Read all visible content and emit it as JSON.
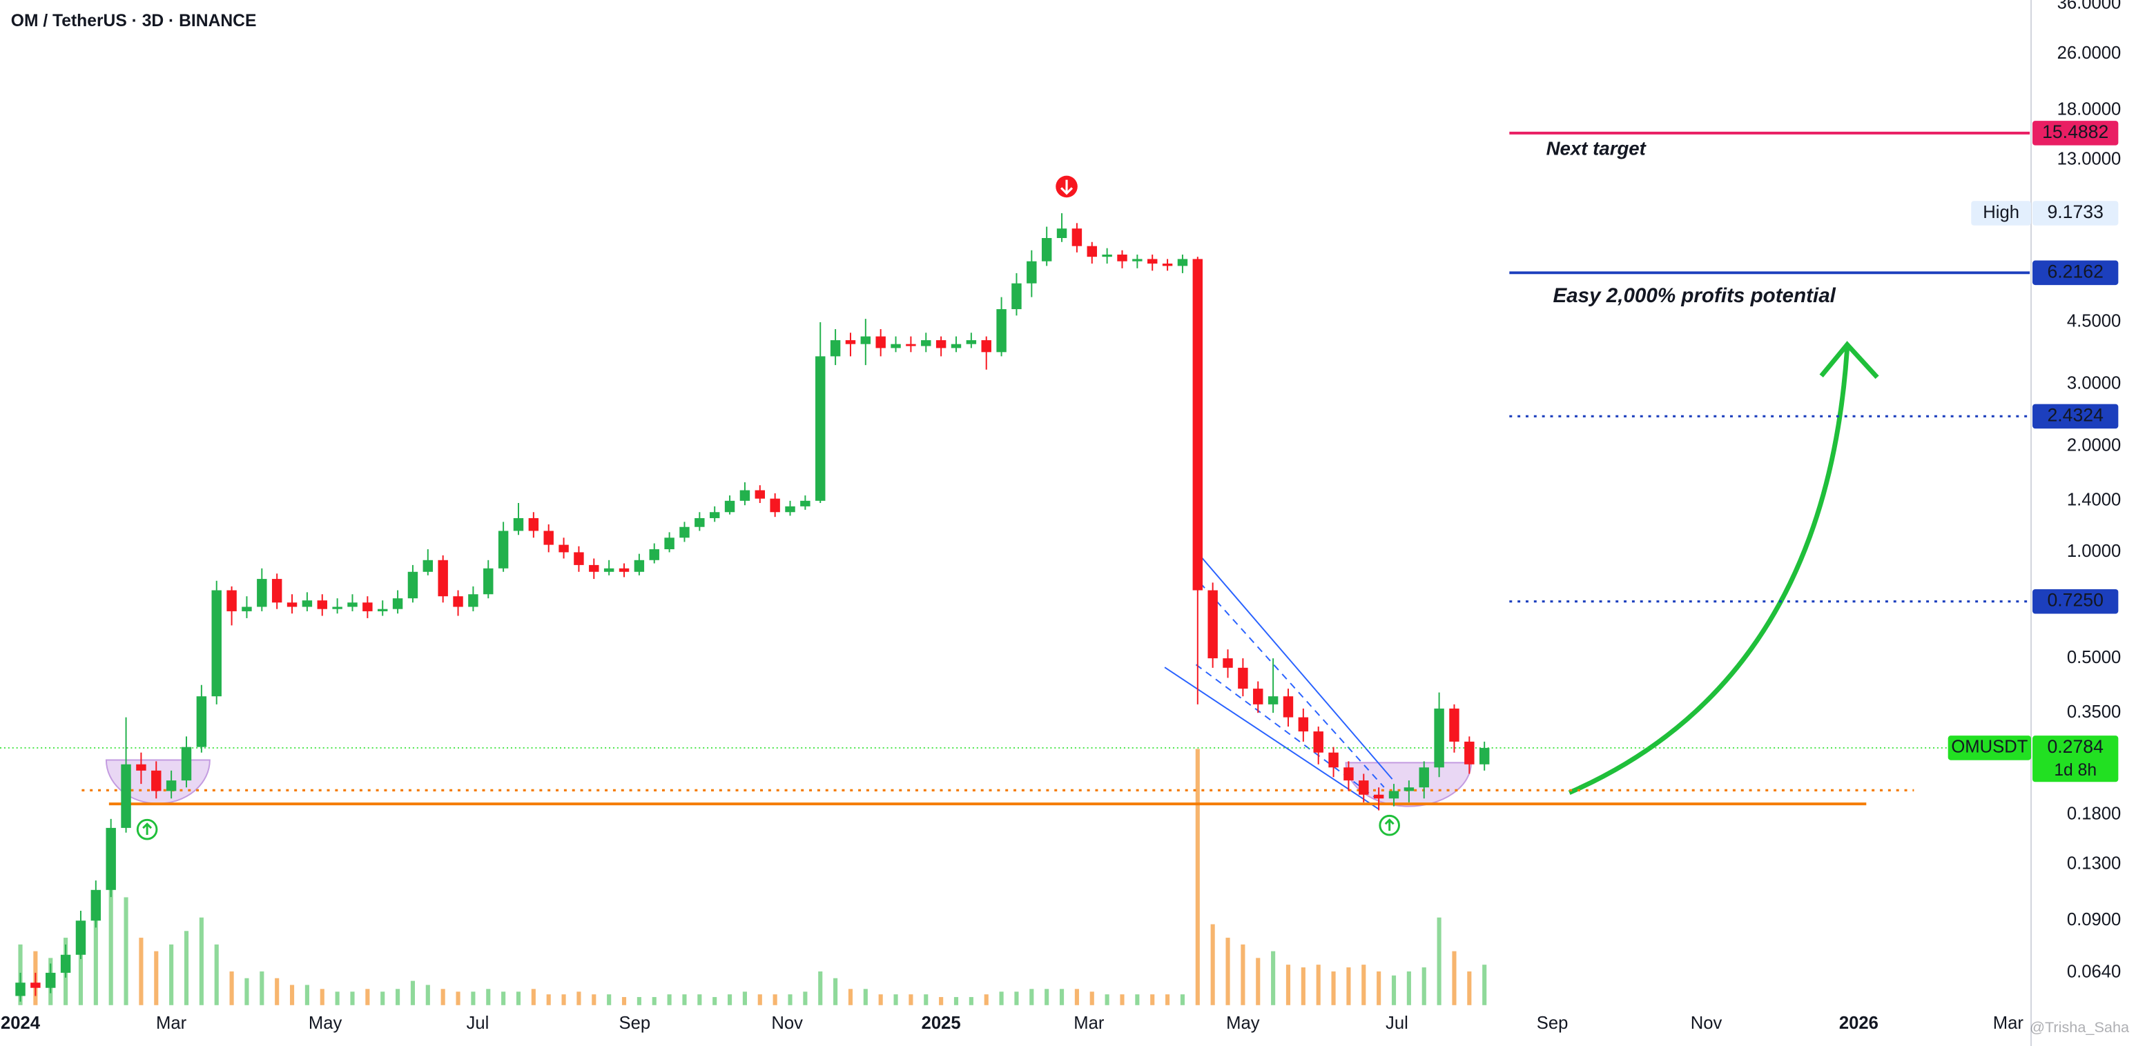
{
  "chart_data": {
    "type": "candlestick",
    "title": "OM / TetherUS · 3D · BINANCE",
    "log_scale": true,
    "up_color": "#22b14c",
    "down_color": "#f7161f",
    "volume_up_color": "#8fd99a",
    "volume_down_color": "#f7b56e",
    "open": [
      0.055,
      0.06,
      0.058,
      0.064,
      0.072,
      0.09,
      0.11,
      0.165,
      0.25,
      0.24,
      0.21,
      0.225,
      0.28,
      0.39,
      0.78,
      0.68,
      0.7,
      0.84,
      0.72,
      0.7,
      0.73,
      0.69,
      0.7,
      0.72,
      0.68,
      0.69,
      0.74,
      0.88,
      0.95,
      0.75,
      0.7,
      0.76,
      0.9,
      1.15,
      1.25,
      1.15,
      1.05,
      1.0,
      0.92,
      0.88,
      0.9,
      0.88,
      0.95,
      1.02,
      1.1,
      1.18,
      1.25,
      1.3,
      1.4,
      1.5,
      1.42,
      1.3,
      1.35,
      1.4,
      3.6,
      4.0,
      3.9,
      4.1,
      3.8,
      3.9,
      3.85,
      4.0,
      3.8,
      3.9,
      4.0,
      3.7,
      4.9,
      5.8,
      6.7,
      7.8,
      8.3,
      7.4,
      6.9,
      7.0,
      6.7,
      6.8,
      6.6,
      6.5,
      6.8,
      0.78,
      0.5,
      0.47,
      0.41,
      0.37,
      0.39,
      0.34,
      0.31,
      0.27,
      0.245,
      0.225,
      0.205,
      0.2,
      0.21,
      0.215,
      0.245,
      0.36,
      0.29,
      0.25
    ],
    "high": [
      0.064,
      0.064,
      0.068,
      0.077,
      0.096,
      0.117,
      0.175,
      0.34,
      0.27,
      0.255,
      0.24,
      0.3,
      0.42,
      0.83,
      0.8,
      0.75,
      0.9,
      0.87,
      0.76,
      0.77,
      0.76,
      0.74,
      0.76,
      0.75,
      0.73,
      0.78,
      0.92,
      1.02,
      0.98,
      0.78,
      0.8,
      0.95,
      1.22,
      1.38,
      1.3,
      1.2,
      1.1,
      1.04,
      0.96,
      0.95,
      0.93,
      0.99,
      1.06,
      1.14,
      1.22,
      1.3,
      1.35,
      1.45,
      1.58,
      1.55,
      1.47,
      1.4,
      1.45,
      4.5,
      4.3,
      4.2,
      4.6,
      4.3,
      4.1,
      4.1,
      4.2,
      4.1,
      4.1,
      4.2,
      4.1,
      5.3,
      6.2,
      7.2,
      8.4,
      9.1733,
      8.6,
      7.6,
      7.3,
      7.2,
      7.0,
      7.0,
      6.8,
      7.0,
      6.9,
      0.82,
      0.53,
      0.5,
      0.43,
      0.5,
      0.41,
      0.36,
      0.32,
      0.28,
      0.255,
      0.235,
      0.215,
      0.22,
      0.225,
      0.255,
      0.4,
      0.37,
      0.3,
      0.29
    ],
    "low": [
      0.053,
      0.055,
      0.056,
      0.062,
      0.07,
      0.086,
      0.105,
      0.16,
      0.22,
      0.2,
      0.2,
      0.215,
      0.27,
      0.37,
      0.62,
      0.65,
      0.68,
      0.69,
      0.67,
      0.68,
      0.66,
      0.67,
      0.68,
      0.65,
      0.66,
      0.67,
      0.72,
      0.86,
      0.72,
      0.66,
      0.68,
      0.74,
      0.88,
      1.12,
      1.1,
      1.0,
      0.96,
      0.88,
      0.84,
      0.86,
      0.85,
      0.86,
      0.93,
      1.0,
      1.07,
      1.15,
      1.22,
      1.28,
      1.36,
      1.38,
      1.26,
      1.27,
      1.32,
      1.38,
      3.4,
      3.6,
      3.4,
      3.6,
      3.7,
      3.7,
      3.7,
      3.6,
      3.7,
      3.8,
      3.3,
      3.6,
      4.7,
      5.3,
      6.5,
      7.6,
      7.1,
      6.6,
      6.6,
      6.4,
      6.4,
      6.3,
      6.3,
      6.2,
      0.37,
      0.47,
      0.44,
      0.39,
      0.35,
      0.35,
      0.32,
      0.29,
      0.25,
      0.23,
      0.21,
      0.195,
      0.185,
      0.19,
      0.195,
      0.2,
      0.23,
      0.27,
      0.235,
      0.24
    ],
    "close": [
      0.06,
      0.058,
      0.064,
      0.072,
      0.09,
      0.11,
      0.165,
      0.25,
      0.24,
      0.21,
      0.225,
      0.28,
      0.39,
      0.78,
      0.68,
      0.7,
      0.84,
      0.72,
      0.7,
      0.73,
      0.69,
      0.7,
      0.72,
      0.68,
      0.69,
      0.74,
      0.88,
      0.95,
      0.75,
      0.7,
      0.76,
      0.9,
      1.15,
      1.25,
      1.15,
      1.05,
      1.0,
      0.92,
      0.88,
      0.9,
      0.88,
      0.95,
      1.02,
      1.1,
      1.18,
      1.25,
      1.3,
      1.4,
      1.5,
      1.42,
      1.3,
      1.35,
      1.4,
      3.6,
      4.0,
      3.9,
      4.1,
      3.8,
      3.9,
      3.85,
      4.0,
      3.8,
      3.9,
      4.0,
      3.7,
      4.9,
      5.8,
      6.7,
      7.8,
      8.3,
      7.4,
      6.9,
      7.0,
      6.7,
      6.8,
      6.6,
      6.5,
      6.8,
      0.78,
      0.5,
      0.47,
      0.41,
      0.37,
      0.39,
      0.34,
      0.31,
      0.27,
      0.245,
      0.225,
      0.205,
      0.2,
      0.21,
      0.215,
      0.245,
      0.36,
      0.29,
      0.25,
      0.2784
    ],
    "volume": [
      45,
      40,
      35,
      50,
      60,
      70,
      100,
      80,
      50,
      40,
      45,
      55,
      65,
      45,
      25,
      20,
      25,
      20,
      15,
      15,
      12,
      10,
      10,
      12,
      10,
      12,
      18,
      15,
      12,
      10,
      10,
      12,
      10,
      10,
      12,
      8,
      8,
      10,
      8,
      8,
      6,
      6,
      6,
      8,
      8,
      8,
      6,
      8,
      10,
      8,
      8,
      8,
      10,
      25,
      20,
      12,
      12,
      8,
      8,
      8,
      8,
      6,
      6,
      6,
      8,
      10,
      10,
      12,
      12,
      12,
      12,
      10,
      8,
      8,
      8,
      8,
      8,
      8,
      190,
      60,
      50,
      45,
      35,
      40,
      30,
      28,
      30,
      25,
      28,
      30,
      25,
      22,
      25,
      28,
      65,
      40,
      25,
      30
    ],
    "volume_lim": [
      0,
      200
    ],
    "xlim": [
      -1.35,
      133.13
    ],
    "xticks": [
      {
        "value": 0,
        "label": "2024"
      },
      {
        "value": 10,
        "label": "Mar"
      },
      {
        "value": 20.2,
        "label": "May"
      },
      {
        "value": 30.3,
        "label": "Jul"
      },
      {
        "value": 40.7,
        "label": "Sep"
      },
      {
        "value": 50.8,
        "label": "Nov"
      },
      {
        "value": 61,
        "label": "2025"
      },
      {
        "value": 70.8,
        "label": "Mar"
      },
      {
        "value": 81,
        "label": "May"
      },
      {
        "value": 91.2,
        "label": "Jul"
      },
      {
        "value": 101.5,
        "label": "Sep"
      },
      {
        "value": 111.7,
        "label": "Nov"
      },
      {
        "value": 121.8,
        "label": "2026"
      },
      {
        "value": 131.7,
        "label": "Mar"
      }
    ],
    "ylim": [
      0.0518,
      36.97
    ],
    "yticks": [
      {
        "value": 36,
        "label": "36.0000"
      },
      {
        "value": 26,
        "label": "26.0000"
      },
      {
        "value": 18,
        "label": "18.0000"
      },
      {
        "value": 13,
        "label": "13.0000"
      },
      {
        "value": 4.5,
        "label": "4.5000"
      },
      {
        "value": 3,
        "label": "3.0000"
      },
      {
        "value": 2,
        "label": "2.0000"
      },
      {
        "value": 1.4,
        "label": "1.4000"
      },
      {
        "value": 1,
        "label": "1.0000"
      },
      {
        "value": 0.5,
        "label": "0.5000"
      },
      {
        "value": 0.35,
        "label": "0.3500"
      },
      {
        "value": 0.18,
        "label": "0.1800"
      },
      {
        "value": 0.13,
        "label": "0.1300"
      },
      {
        "value": 0.09,
        "label": "0.0900"
      },
      {
        "value": 0.064,
        "label": "0.0640"
      }
    ],
    "levels": [
      {
        "value": 15.4882,
        "label": "15.4882",
        "color": "#e91e63",
        "label_color": "#ffffff",
        "style": "solid"
      },
      {
        "value": 9.1733,
        "label": "9.1733",
        "tag": "High",
        "color": "#e3effd",
        "label_color": "#131722",
        "style": "none"
      },
      {
        "value": 6.2162,
        "label": "6.2162",
        "color": "#1c3fbd",
        "label_color": "#ffffff",
        "style": "solid"
      },
      {
        "value": 2.4324,
        "label": "2.4324",
        "color": "#1c3fbd",
        "label_color": "#ffffff",
        "style": "dotted"
      },
      {
        "value": 0.725,
        "label": "0.7250",
        "color": "#1c3fbd",
        "label_color": "#ffffff",
        "style": "dotted"
      },
      {
        "value": 0.2784,
        "label": "0.2784",
        "tag": "OMUSDT",
        "sub": "1d 8h",
        "color": "#22e022",
        "label_color": "#131722",
        "style": "dotted"
      },
      {
        "value": 0.211,
        "color": "#f57c00",
        "style": "dotted"
      },
      {
        "value": 0.193,
        "color": "#f57c00",
        "style": "solid"
      }
    ],
    "annotations": [
      {
        "text": "Next target",
        "color": "#e91e63"
      },
      {
        "text": "Easy 2,000% profits potential",
        "color": "#1c3fbd"
      }
    ],
    "watermark": "@Trisha_Saha"
  }
}
